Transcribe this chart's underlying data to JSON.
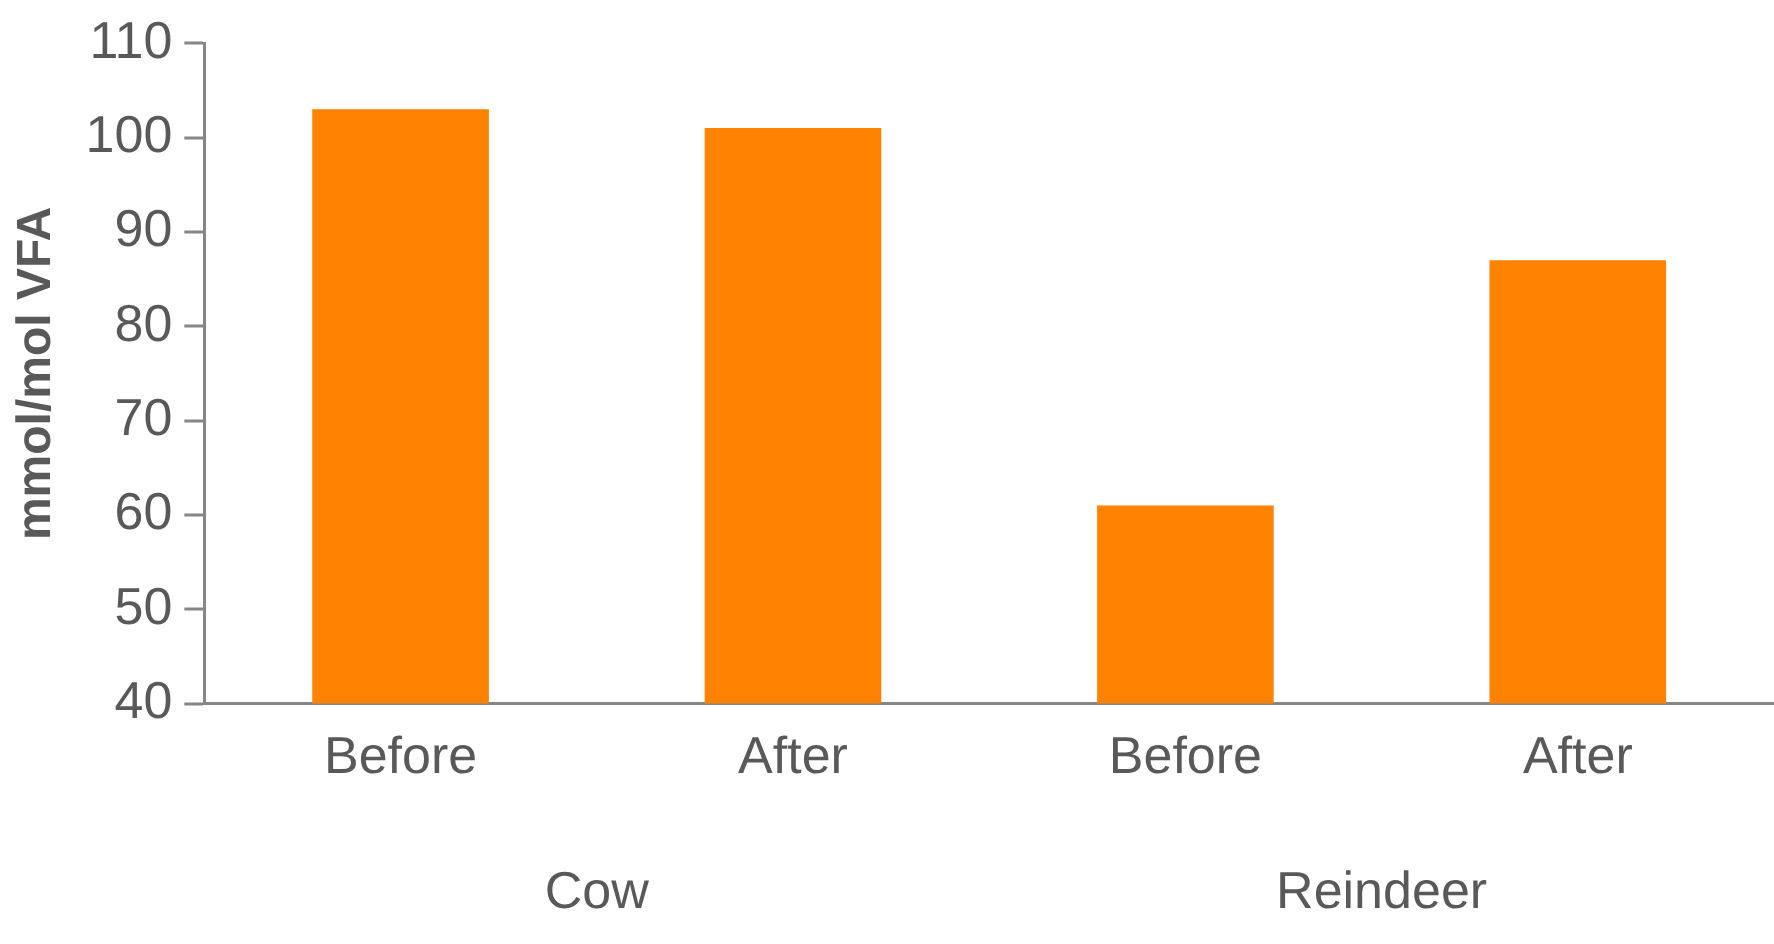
{
  "chart_data": {
    "type": "bar",
    "ylabel": "mmol/mol VFA",
    "categories": [
      "Before",
      "After",
      "Before",
      "After"
    ],
    "values": [
      103,
      101,
      61,
      87
    ],
    "color": "#ff8200",
    "annotations": [
      "Cow",
      "Reindeer"
    ],
    "ylim": [
      40,
      110
    ],
    "yticks": [
      40,
      50,
      60,
      70,
      80,
      90,
      100,
      110
    ],
    "grid": false,
    "legend": false
  }
}
